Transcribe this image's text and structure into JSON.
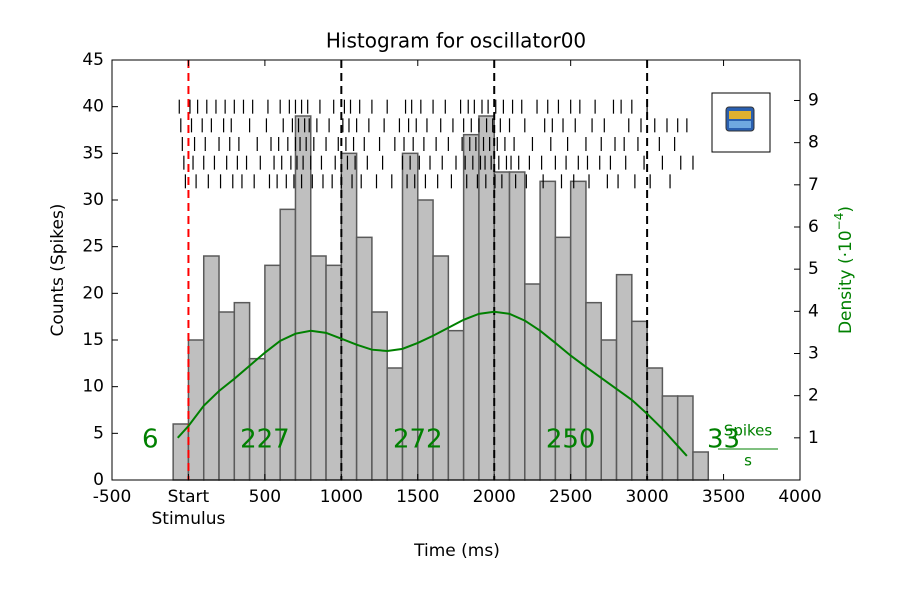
{
  "chart_data": {
    "type": "histogram",
    "title": "Histogram for oscillator00",
    "xlabel": "Time (ms)",
    "ylabel": "Counts (Spikes)",
    "y2label": {
      "text": "Density (·10",
      "exponent": "−4",
      "suffix": ")"
    },
    "density_unit": {
      "numerator": "Spikes",
      "denominator": "s"
    },
    "xlim": [
      -500,
      4000
    ],
    "xticks": [
      -500,
      {
        "value": 0,
        "label": "Start\nStimulus"
      },
      500,
      1000,
      1500,
      2000,
      2500,
      3000,
      3500,
      4000
    ],
    "ylim": [
      0,
      45
    ],
    "yticks": [
      0,
      5,
      10,
      15,
      20,
      25,
      30,
      35,
      40,
      45
    ],
    "y2lim": [
      0,
      9.96
    ],
    "y2ticks": [
      1,
      2,
      3,
      4,
      5,
      6,
      7,
      8,
      9
    ],
    "bins": [
      -100,
      0,
      100,
      200,
      300,
      400,
      500,
      600,
      700,
      800,
      900,
      1000,
      1100,
      1200,
      1300,
      1400,
      1500,
      1600,
      1700,
      1800,
      1900,
      2000,
      2100,
      2200,
      2300,
      2400,
      2500,
      2600,
      2700,
      2800,
      2900,
      3000,
      3100,
      3200,
      3300,
      3400
    ],
    "counts": [
      6,
      15,
      24,
      18,
      19,
      13,
      23,
      29,
      39,
      24,
      23,
      35,
      26,
      18,
      12,
      35,
      30,
      24,
      16,
      37,
      39,
      33,
      33,
      21,
      32,
      26,
      32,
      19,
      15,
      22,
      17,
      12,
      9,
      9,
      3
    ],
    "color": "#bfbfbf",
    "edge_color": "#5a5a5a",
    "vlines": [
      0,
      1000,
      2000,
      3000
    ],
    "vline_colors": [
      "#ff0000",
      "#000000",
      "#000000",
      "#000000"
    ],
    "segment_counts": [
      6,
      227,
      272,
      250,
      33
    ],
    "segment_color": "#008000",
    "density": {
      "name": "Density",
      "axis": "y2",
      "color": "#008000",
      "x": [
        -70,
        0,
        100,
        200,
        300,
        400,
        500,
        600,
        700,
        800,
        900,
        1000,
        1100,
        1200,
        1300,
        1400,
        1500,
        1600,
        1700,
        1800,
        1900,
        2000,
        2100,
        2200,
        2300,
        2400,
        2500,
        2600,
        2700,
        2800,
        2900,
        3000,
        3100,
        3200,
        3260
      ],
      "values": [
        1.0,
        1.28,
        1.76,
        2.11,
        2.4,
        2.71,
        3.02,
        3.3,
        3.47,
        3.54,
        3.49,
        3.35,
        3.21,
        3.09,
        3.06,
        3.11,
        3.25,
        3.42,
        3.61,
        3.8,
        3.94,
        3.99,
        3.94,
        3.78,
        3.54,
        3.25,
        2.95,
        2.68,
        2.42,
        2.16,
        1.9,
        1.57,
        1.21,
        0.81,
        0.57
      ]
    },
    "raster": {
      "color": "#000000",
      "rows": [
        {
          "y": 40,
          "times": [
            -60,
            10,
            60,
            120,
            180,
            240,
            300,
            360,
            420,
            520,
            600,
            660,
            700,
            740,
            780,
            860,
            950,
            1020,
            1060,
            1120,
            1200,
            1300,
            1420,
            1460,
            1520,
            1600,
            1680,
            1780,
            1830,
            1870,
            1920,
            1960,
            2010,
            2060,
            2120,
            2180,
            2280,
            2350,
            2420,
            2500,
            2560,
            2660,
            2780,
            2830,
            2900,
            3000
          ]
        },
        {
          "y": 38,
          "times": [
            -50,
            20,
            90,
            150,
            230,
            280,
            400,
            510,
            620,
            680,
            720,
            760,
            790,
            840,
            920,
            1010,
            1050,
            1100,
            1180,
            1280,
            1380,
            1440,
            1490,
            1560,
            1650,
            1730,
            1800,
            1850,
            1900,
            1950,
            1990,
            2040,
            2100,
            2200,
            2330,
            2380,
            2450,
            2530,
            2640,
            2720,
            2880,
            2960,
            3050,
            3130,
            3200,
            3260
          ]
        },
        {
          "y": 36,
          "times": [
            -40,
            40,
            110,
            200,
            270,
            330,
            450,
            540,
            590,
            650,
            700,
            730,
            770,
            820,
            900,
            980,
            1030,
            1080,
            1150,
            1250,
            1350,
            1410,
            1470,
            1540,
            1620,
            1700,
            1790,
            1840,
            1880,
            1930,
            1970,
            2020,
            2070,
            2130,
            2250,
            2370,
            2480,
            2600,
            2700,
            2790,
            2850,
            2940,
            3080,
            3180
          ]
        },
        {
          "y": 34,
          "times": [
            -30,
            30,
            100,
            170,
            250,
            320,
            380,
            470,
            560,
            610,
            670,
            710,
            750,
            800,
            870,
            960,
            1040,
            1090,
            1170,
            1270,
            1400,
            1450,
            1510,
            1580,
            1660,
            1750,
            1810,
            1860,
            1910,
            1940,
            1980,
            2030,
            2080,
            2110,
            2160,
            2230,
            2310,
            2400,
            2470,
            2550,
            2610,
            2690,
            2760,
            2860,
            2980,
            3100,
            3220,
            3300
          ]
        },
        {
          "y": 32,
          "times": [
            -20,
            50,
            130,
            210,
            290,
            350,
            430,
            530,
            580,
            640,
            690,
            740,
            810,
            880,
            940,
            1000,
            1070,
            1130,
            1230,
            1330,
            1430,
            1480,
            1550,
            1630,
            1720,
            1820,
            1890,
            1945,
            2005,
            2050,
            2140,
            2210,
            2320,
            2440,
            2520,
            2620,
            2740,
            2810,
            2920,
            3020,
            3150
          ]
        }
      ]
    }
  }
}
